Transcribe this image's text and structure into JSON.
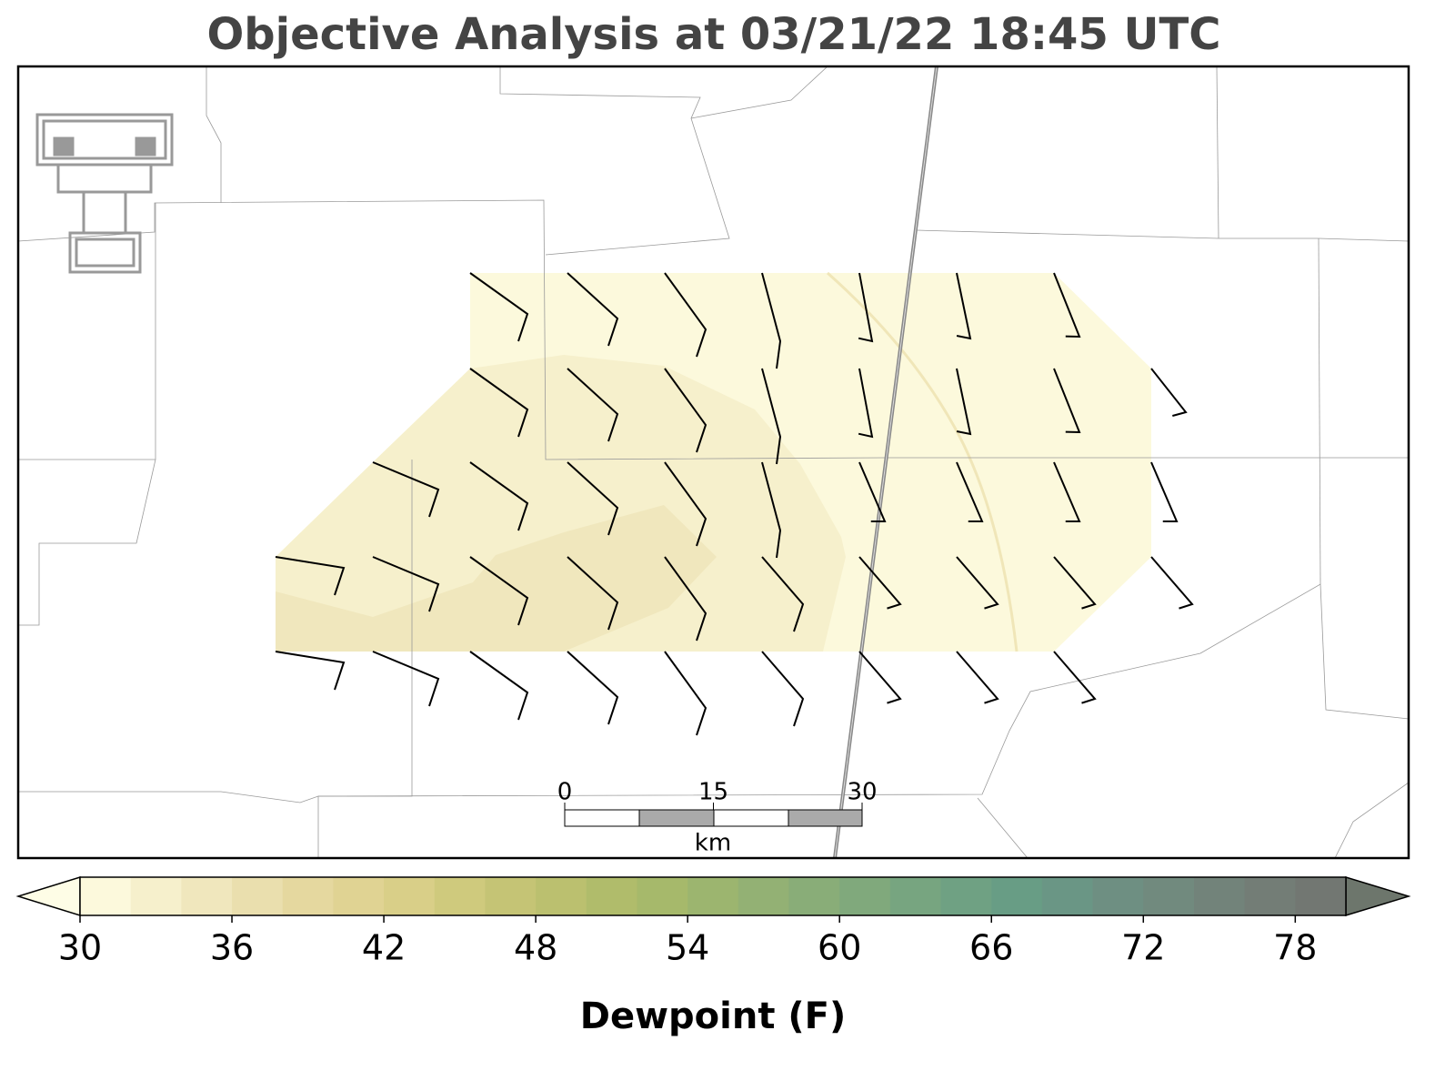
{
  "title": "Objective Analysis at 03/21/22 18:45 UTC",
  "scale_bar": {
    "ticks": [
      0,
      15,
      30
    ],
    "unit": "km"
  },
  "colorbar": {
    "label": "Dewpoint (F)",
    "levels": [
      30,
      32,
      34,
      36,
      38,
      40,
      42,
      44,
      46,
      48,
      50,
      52,
      54,
      56,
      58,
      60,
      62,
      64,
      66,
      68,
      70,
      72,
      74,
      76,
      78,
      80
    ],
    "colors": [
      "#fcf9dc",
      "#f6f0cc",
      "#f0e7bd",
      "#eadfae",
      "#e5d89f",
      "#e0d393",
      "#d9cf88",
      "#cfca7d",
      "#c5c475",
      "#bbc06f",
      "#b0bc6b",
      "#a6b96b",
      "#9cb56f",
      "#93b174",
      "#89ad78",
      "#80a97c",
      "#77a580",
      "#6fa183",
      "#689d85",
      "#6a9685",
      "#6e8f82",
      "#718a7e",
      "#72837a",
      "#737d76",
      "#727772"
    ],
    "under_color": "#fefde6",
    "over_color": "#6d766c",
    "ticks": [
      30,
      36,
      42,
      48,
      54,
      60,
      66,
      72,
      78
    ]
  }
}
